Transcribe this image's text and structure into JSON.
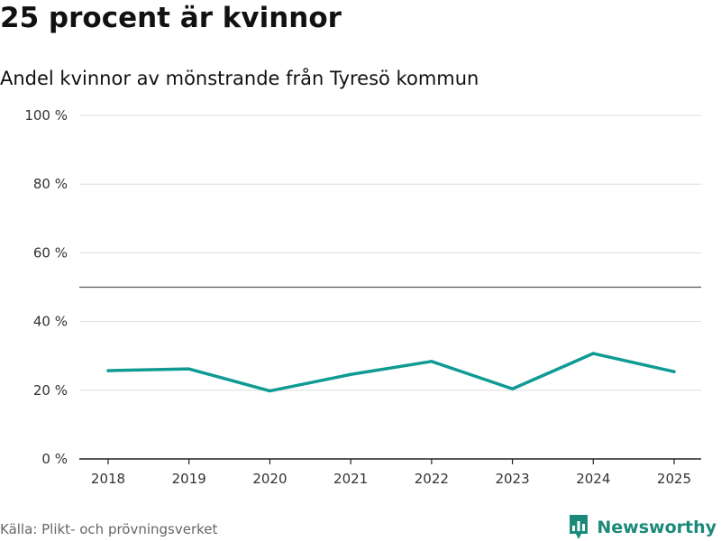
{
  "page": {
    "title": "25 procent är kvinnor",
    "subtitle": "Andel kvinnor av mönstrande från Tyresö kommun",
    "source": "Källa: Plikt- och prövningsverket",
    "brand": "Newsworthy"
  },
  "colors": {
    "line": "#0f9b93",
    "brand": "#1b8a7a",
    "grid": "#dddddd",
    "reference": "#555555",
    "axis": "#222222"
  },
  "chart_data": {
    "type": "line",
    "title": "25 procent är kvinnor",
    "subtitle": "Andel kvinnor av mönstrande från Tyresö kommun",
    "xlabel": "",
    "ylabel": "",
    "categories": [
      "2018",
      "2019",
      "2020",
      "2021",
      "2022",
      "2023",
      "2024",
      "2025"
    ],
    "series": [
      {
        "name": "Andel kvinnor",
        "values": [
          25.7,
          26.2,
          19.8,
          24.6,
          28.4,
          20.4,
          30.7,
          25.4
        ]
      }
    ],
    "ylim": [
      0,
      100
    ],
    "yticks": [
      0,
      20,
      40,
      60,
      80,
      100
    ],
    "ytick_labels": [
      "0 %",
      "20 %",
      "40 %",
      "60 %",
      "80 %",
      "100 %"
    ],
    "reference_line": 50,
    "grid": true,
    "legend": "none"
  }
}
